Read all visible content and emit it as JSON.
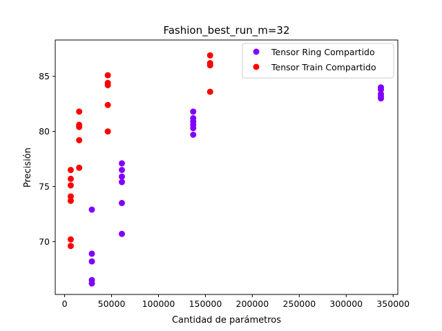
{
  "chart_data": {
    "type": "scatter",
    "title": "Fashion_best_run_m=32",
    "xlabel": "Cantidad de parámetros",
    "ylabel": "Precisión",
    "xlim": [
      -10000,
      355000
    ],
    "ylim": [
      65.2,
      88.3
    ],
    "xticks": [
      0,
      50000,
      100000,
      150000,
      200000,
      250000,
      300000,
      350000
    ],
    "xtick_labels": [
      "0",
      "50000",
      "100000",
      "150000",
      "200000",
      "250000",
      "300000",
      "350000"
    ],
    "yticks": [
      70,
      75,
      80,
      85
    ],
    "ytick_labels": [
      "70",
      "75",
      "80",
      "85"
    ],
    "grid": false,
    "legend_position": "top-right",
    "series": [
      {
        "name": "Tensor Ring Compartido",
        "color": "#8000ff",
        "points": [
          [
            29000,
            72.9
          ],
          [
            29000,
            68.9
          ],
          [
            29000,
            68.2
          ],
          [
            29000,
            66.5
          ],
          [
            29000,
            66.2
          ],
          [
            61000,
            77.1
          ],
          [
            61000,
            76.5
          ],
          [
            61000,
            75.9
          ],
          [
            61000,
            75.4
          ],
          [
            61000,
            73.5
          ],
          [
            61000,
            70.7
          ],
          [
            137000,
            81.8
          ],
          [
            137000,
            81.2
          ],
          [
            137000,
            80.9
          ],
          [
            137000,
            80.6
          ],
          [
            137000,
            80.3
          ],
          [
            137000,
            79.7
          ],
          [
            337000,
            84.0
          ],
          [
            337000,
            83.8
          ],
          [
            337000,
            83.4
          ],
          [
            337000,
            83.2
          ],
          [
            337000,
            83.0
          ]
        ]
      },
      {
        "name": "Tensor Train Compartido",
        "color": "#ff0000",
        "points": [
          [
            6500,
            76.5
          ],
          [
            6500,
            75.7
          ],
          [
            6500,
            75.1
          ],
          [
            6500,
            74.1
          ],
          [
            6500,
            73.7
          ],
          [
            6500,
            70.2
          ],
          [
            6500,
            69.6
          ],
          [
            15500,
            81.8
          ],
          [
            15500,
            80.6
          ],
          [
            15500,
            80.4
          ],
          [
            15500,
            79.2
          ],
          [
            15500,
            76.7
          ],
          [
            46000,
            85.1
          ],
          [
            46000,
            84.4
          ],
          [
            46000,
            84.2
          ],
          [
            46000,
            82.4
          ],
          [
            46000,
            80.0
          ],
          [
            155000,
            86.9
          ],
          [
            155000,
            86.2
          ],
          [
            155000,
            86.0
          ],
          [
            155000,
            83.6
          ]
        ]
      }
    ]
  }
}
